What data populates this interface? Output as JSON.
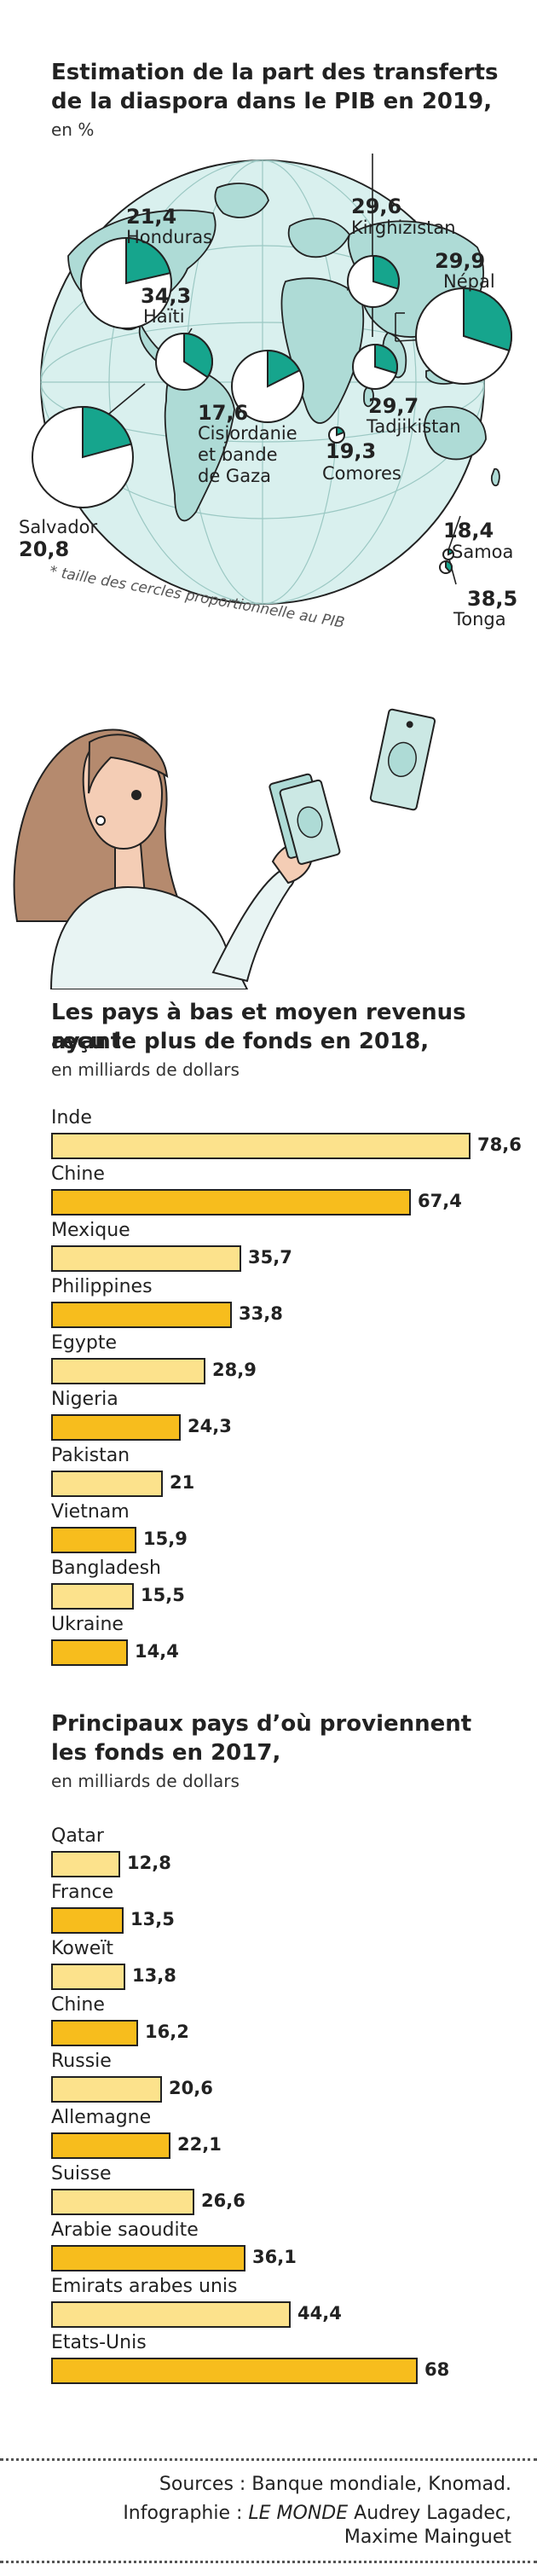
{
  "colors": {
    "bar_dark": "#f7bd1d",
    "bar_light": "#fce28c",
    "pie_fill": "#16a58d",
    "globe_land": "#aedbd6",
    "globe_sea": "#d9f0ee",
    "ink": "#222222"
  },
  "map_section": {
    "title_line1": "Estimation de la part des transferts",
    "title_line2": "de la diaspora dans le PIB en 2019,",
    "subtitle": "en %",
    "note": "* taille des cercles proportionnelle au PIB",
    "countries": [
      {
        "name": "Honduras",
        "value": "21,4"
      },
      {
        "name": "Kirghizistan",
        "value": "29,6"
      },
      {
        "name": "Népal",
        "value": "29,9"
      },
      {
        "name": "Haïti",
        "value": "34,3"
      },
      {
        "name": "Cisjordanie et bande de Gaza",
        "value": "17,6",
        "lines": [
          "Cisjordanie",
          "et bande",
          "de Gaza"
        ]
      },
      {
        "name": "Tadjikistan",
        "value": "29,7"
      },
      {
        "name": "Comores",
        "value": "19,3"
      },
      {
        "name": "Salvador",
        "value": "20,8"
      },
      {
        "name": "Samoa",
        "value": "18,4"
      },
      {
        "name": "Tonga",
        "value": "38,5"
      }
    ]
  },
  "chart_data": [
    {
      "type": "bar",
      "title": "Les pays à bas et moyen revenus ayant reçu le plus de fonds en 2018,",
      "title_lines": [
        "Les pays à bas et moyen revenus ayant",
        "reçu le plus de fonds en 2018,"
      ],
      "subtitle": "en milliards de dollars",
      "categories": [
        "Inde",
        "Chine",
        "Mexique",
        "Philippines",
        "Egypte",
        "Nigeria",
        "Pakistan",
        "Vietnam",
        "Bangladesh",
        "Ukraine"
      ],
      "values": [
        78.6,
        67.4,
        35.7,
        33.8,
        28.9,
        24.3,
        21,
        15.9,
        15.5,
        14.4
      ],
      "value_labels": [
        "78,6",
        "67,4",
        "35,7",
        "33,8",
        "28,9",
        "24,3",
        "21",
        "15,9",
        "15,5",
        "14,4"
      ],
      "xlim": [
        0,
        78.6
      ]
    },
    {
      "type": "bar",
      "title": "Principaux pays d’où proviennent les fonds en 2017,",
      "title_lines": [
        "Principaux pays d’où proviennent",
        "les fonds en 2017,"
      ],
      "subtitle": "en milliards de dollars",
      "categories": [
        "Qatar",
        "France",
        "Koweït",
        "Chine",
        "Russie",
        "Allemagne",
        "Suisse",
        "Arabie saoudite",
        "Emirats arabes unis",
        "Etats-Unis"
      ],
      "values": [
        12.8,
        13.5,
        13.8,
        16.2,
        20.6,
        22.1,
        26.6,
        36.1,
        44.4,
        68
      ],
      "value_labels": [
        "12,8",
        "13,5",
        "13,8",
        "16,2",
        "20,6",
        "22,1",
        "26,6",
        "36,1",
        "44,4",
        "68"
      ],
      "xlim": [
        0,
        68
      ]
    }
  ],
  "footer": {
    "sources": "Sources : Banque mondiale, Knomad.",
    "credit_prefix": "Infographie : ",
    "credit_paper": "LE MONDE",
    "credit_authors": " Audrey Lagadec,",
    "credit_line2": "Maxime Mainguet"
  }
}
